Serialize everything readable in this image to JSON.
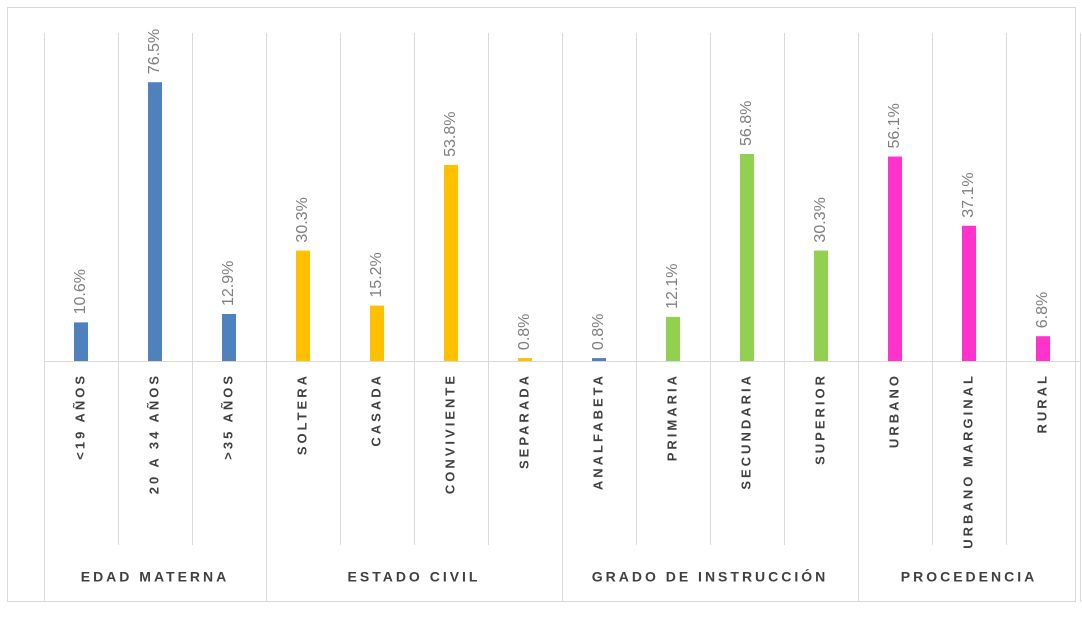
{
  "chart_data": {
    "type": "bar",
    "ylim": [
      0,
      90
    ],
    "groups": [
      {
        "name": "EDAD MATERNA",
        "categories": [
          "<19 AÑOS",
          "20 A 34 AÑOS",
          ">35 AÑOS"
        ],
        "values": [
          10.6,
          76.5,
          12.9
        ],
        "value_labels": [
          "10.6%",
          "76.5%",
          "12.9%"
        ],
        "colors": [
          "#4f81bd",
          "#4f81bd",
          "#4f81bd"
        ]
      },
      {
        "name": "ESTADO CIVIL",
        "categories": [
          "SOLTERA",
          "CASADA",
          "CONVIVIENTE",
          "SEPARADA"
        ],
        "values": [
          30.3,
          15.2,
          53.8,
          0.8
        ],
        "value_labels": [
          "30.3%",
          "15.2%",
          "53.8%",
          "0.8%"
        ],
        "colors": [
          "#ffc000",
          "#ffc000",
          "#ffc000",
          "#ffc000"
        ]
      },
      {
        "name": "GRADO DE INSTRUCCIÓN",
        "categories": [
          "ANALFABETA",
          "PRIMARIA",
          "SECUNDARIA",
          "SUPERIOR"
        ],
        "values": [
          0.8,
          12.1,
          56.8,
          30.3
        ],
        "value_labels": [
          "0.8%",
          "12.1%",
          "56.8%",
          "30.3%"
        ],
        "colors": [
          "#4f81bd",
          "#92d050",
          "#92d050",
          "#92d050"
        ]
      },
      {
        "name": "PROCEDENCIA",
        "categories": [
          "URBANO",
          "URBANO MARGINAL",
          "RURAL"
        ],
        "values": [
          56.1,
          37.1,
          6.8
        ],
        "value_labels": [
          "56.1%",
          "37.1%",
          "6.8%"
        ],
        "colors": [
          "#ff33cc",
          "#ff33cc",
          "#ff33cc"
        ]
      }
    ]
  }
}
